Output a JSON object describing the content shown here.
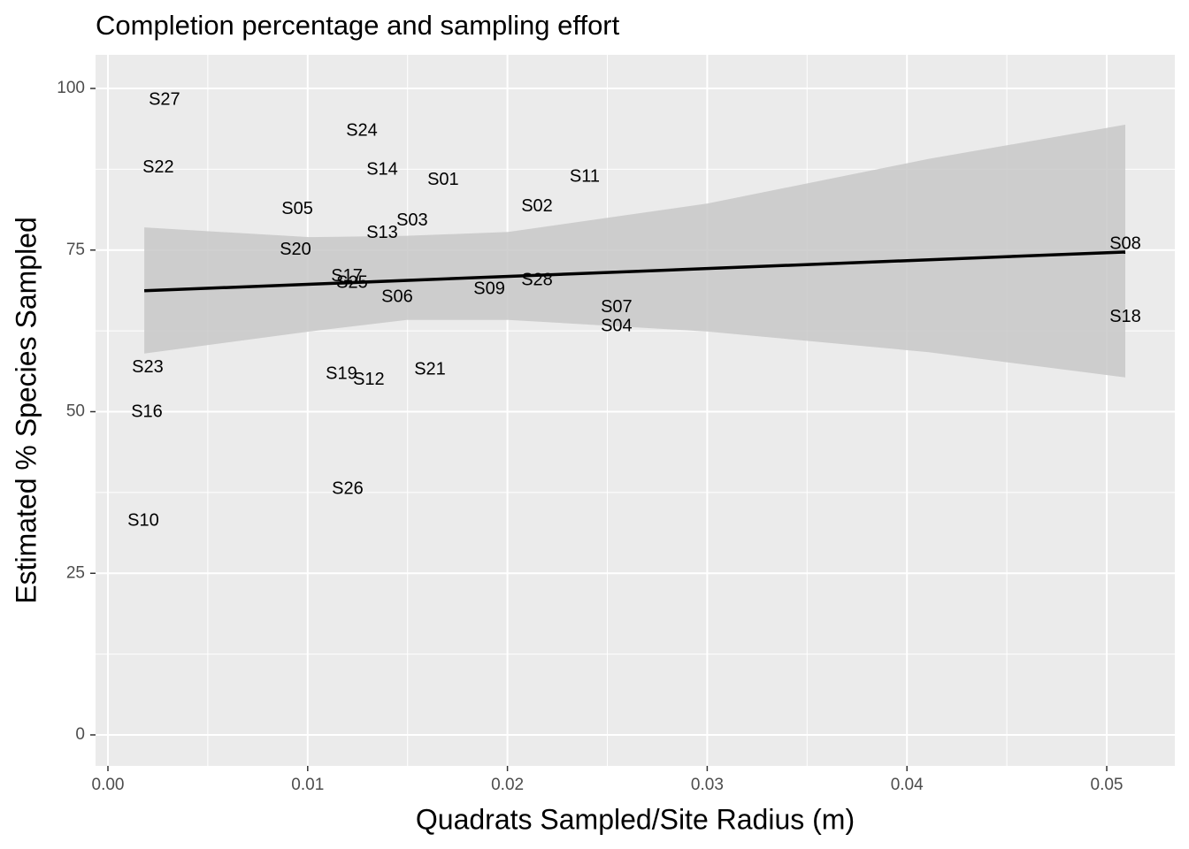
{
  "chart_data": {
    "type": "scatter",
    "title": "Completion percentage and sampling effort",
    "x_label": "Quadrats Sampled/Site Radius (m)",
    "y_label": "Estimated % Species Sampled",
    "labels": [
      "S27",
      "S22",
      "S24",
      "S14",
      "S01",
      "S11",
      "S05",
      "S02",
      "S03",
      "S13",
      "S20",
      "S08",
      "S17",
      "S25",
      "S28",
      "S09",
      "S06",
      "S07",
      "S04",
      "S18",
      "S23",
      "S19",
      "S12",
      "S21",
      "S16",
      "S26",
      "S10"
    ],
    "x": [
      0.00283,
      0.00252,
      0.01271,
      0.01373,
      0.01678,
      0.02387,
      0.00948,
      0.02148,
      0.01523,
      0.01373,
      0.00939,
      0.05093,
      0.01196,
      0.01222,
      0.02148,
      0.01909,
      0.01448,
      0.02546,
      0.02546,
      0.05093,
      0.00199,
      0.01169,
      0.01306,
      0.01612,
      0.00195,
      0.012,
      0.00177
    ],
    "y": [
      98.2,
      87.7,
      93.4,
      87.4,
      85.8,
      86.3,
      81.3,
      81.7,
      79.5,
      77.6,
      75.0,
      75.9,
      70.9,
      69.9,
      70.3,
      68.9,
      67.7,
      66.1,
      63.2,
      64.6,
      56.8,
      55.8,
      54.9,
      56.5,
      49.9,
      38.0,
      33.1
    ],
    "color": "#000000",
    "fit": {
      "x": [
        0.00182,
        0.05093
      ],
      "y": [
        68.7,
        74.7
      ],
      "color": "#000000"
    },
    "band": {
      "x": [
        0.00182,
        0.01009,
        0.01496,
        0.02004,
        0.03001,
        0.04109,
        0.05093
      ],
      "upper": [
        78.5,
        77.0,
        77.2,
        77.8,
        82.2,
        89.1,
        94.4
      ],
      "lower": [
        59.0,
        62.4,
        64.2,
        64.2,
        62.4,
        59.2,
        55.3
      ],
      "color": "#c8c8c8"
    },
    "xlim": [
      -0.00062,
      0.05341
    ],
    "ylim": [
      -4.79,
      105.2
    ],
    "xticks": [
      {
        "value": 0,
        "label": "0.00"
      },
      0.01,
      0.02,
      0.03,
      0.04,
      0.05
    ],
    "yticks": [
      0,
      25,
      50,
      75,
      100
    ],
    "grid": true,
    "minor_grid": true
  }
}
